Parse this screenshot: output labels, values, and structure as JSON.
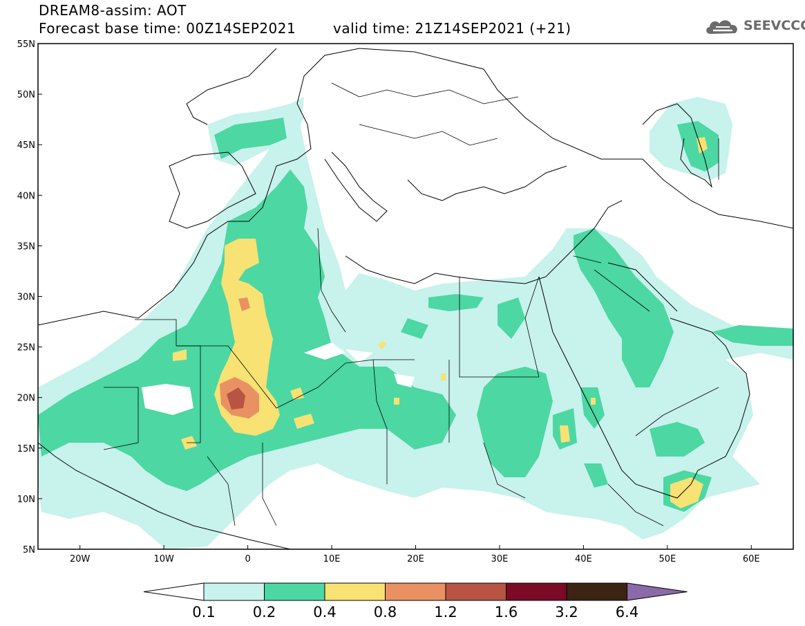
{
  "header": {
    "line1": "DREAM8-assim: AOT",
    "line2": "Forecast base time: 00Z14SEP2021",
    "line3": "valid time: 21Z14SEP2021 (+21)"
  },
  "logo": {
    "text": "SEEVCCC",
    "icon": "cloud-icon",
    "color": "#6b6b6b"
  },
  "map": {
    "projection": "latitude-longitude",
    "lon_range": [
      -25,
      65
    ],
    "lat_range": [
      5,
      55
    ],
    "lat_ticks": [
      {
        "value": 55,
        "label": "55N"
      },
      {
        "value": 50,
        "label": "50N"
      },
      {
        "value": 45,
        "label": "45N"
      },
      {
        "value": 40,
        "label": "40N"
      },
      {
        "value": 35,
        "label": "35N"
      },
      {
        "value": 30,
        "label": "30N"
      },
      {
        "value": 25,
        "label": "25N"
      },
      {
        "value": 20,
        "label": "20N"
      },
      {
        "value": 15,
        "label": "15N"
      },
      {
        "value": 10,
        "label": "10N"
      },
      {
        "value": 5,
        "label": "5N"
      }
    ],
    "lon_ticks": [
      {
        "value": -20,
        "label": "20W"
      },
      {
        "value": -10,
        "label": "10W"
      },
      {
        "value": 0,
        "label": "0"
      },
      {
        "value": 10,
        "label": "10E"
      },
      {
        "value": 20,
        "label": "20E"
      },
      {
        "value": 30,
        "label": "30E"
      },
      {
        "value": 40,
        "label": "40E"
      },
      {
        "value": 50,
        "label": "50E"
      },
      {
        "value": 60,
        "label": "60E"
      }
    ]
  },
  "colorbar": {
    "labels": [
      "0.1",
      "0.2",
      "0.4",
      "0.8",
      "1.2",
      "1.6",
      "3.2",
      "6.4"
    ],
    "colors": [
      "#ffffff",
      "#c8f2ec",
      "#4cd7a3",
      "#f7e273",
      "#e99162",
      "#b85443",
      "#7a0a26",
      "#3d2312",
      "#8a6aa8"
    ]
  }
}
